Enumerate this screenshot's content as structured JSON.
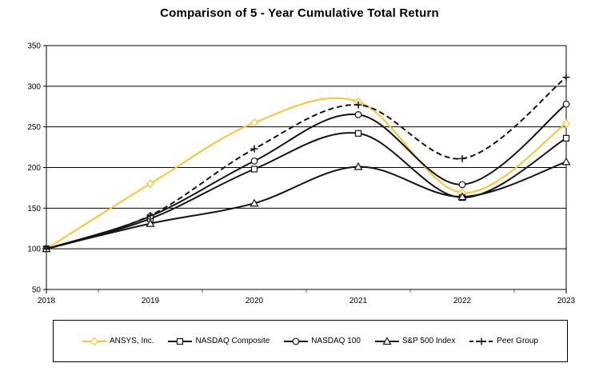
{
  "chart_data": {
    "type": "line",
    "title": "Comparison of 5 - Year Cumulative Total Return",
    "x": [
      "2018",
      "2019",
      "2020",
      "2021",
      "2022",
      "2023"
    ],
    "ylim": [
      50,
      350
    ],
    "y_ticks": [
      350,
      300,
      250,
      200,
      150,
      100,
      50
    ],
    "grid": true,
    "smoothed_lines": true,
    "legend_position": "bottom-box",
    "colors": {
      "ansys_line": "#FFC32B",
      "default_line": "#141414",
      "marker_fill": "#ffffff",
      "grid": "#000000"
    },
    "series": [
      {
        "name": "ANSYS, Inc.",
        "marker": "diamond",
        "color": "#FFC32B",
        "line_style": "solid",
        "values": [
          100,
          180,
          255,
          281,
          169,
          254
        ]
      },
      {
        "name": "NASDAQ Composite",
        "marker": "square",
        "color": "#141414",
        "line_style": "solid",
        "values": [
          100,
          137,
          198,
          242,
          163,
          236
        ]
      },
      {
        "name": "NASDAQ 100",
        "marker": "circle",
        "color": "#141414",
        "line_style": "solid",
        "values": [
          100,
          140,
          208,
          265,
          179,
          278
        ]
      },
      {
        "name": "S&P 500 Index",
        "marker": "triangle",
        "color": "#141414",
        "line_style": "solid",
        "values": [
          100,
          131,
          156,
          201,
          164,
          207
        ]
      },
      {
        "name": "Peer Group",
        "marker": "plus",
        "color": "#141414",
        "line_style": "dashed",
        "values": [
          100,
          141,
          223,
          277,
          211,
          311
        ]
      }
    ]
  }
}
